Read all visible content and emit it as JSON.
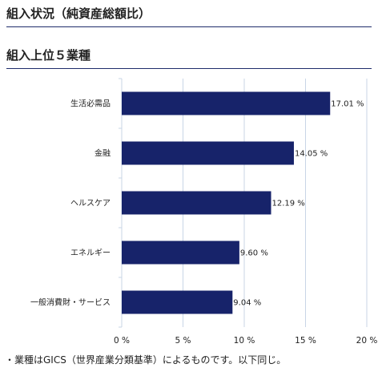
{
  "headings": {
    "holdings_status": "組入状況（純資産総額比）",
    "top5_sectors": "組入上位５業種"
  },
  "footnote": "・業種はGICS（世界産業分類基準）によるものです。以下同じ。",
  "chart_data": {
    "type": "bar",
    "orientation": "horizontal",
    "categories": [
      "生活必需品",
      "金融",
      "ヘルスケア",
      "エネルギー",
      "一般消費財・サービス"
    ],
    "values": [
      17.01,
      14.05,
      12.19,
      9.6,
      9.04
    ],
    "value_labels": [
      "17.01 %",
      "14.05 %",
      "12.19 %",
      "9.60 %",
      "9.04 %"
    ],
    "x_ticks": [
      0,
      5,
      10,
      15,
      20
    ],
    "x_tick_labels": [
      "0 %",
      "5 %",
      "10 %",
      "15 %",
      "20 %"
    ],
    "xlim": [
      0,
      20
    ],
    "grid": true,
    "bar_color": "#17236a",
    "grid_color": "#c9d5e6"
  }
}
